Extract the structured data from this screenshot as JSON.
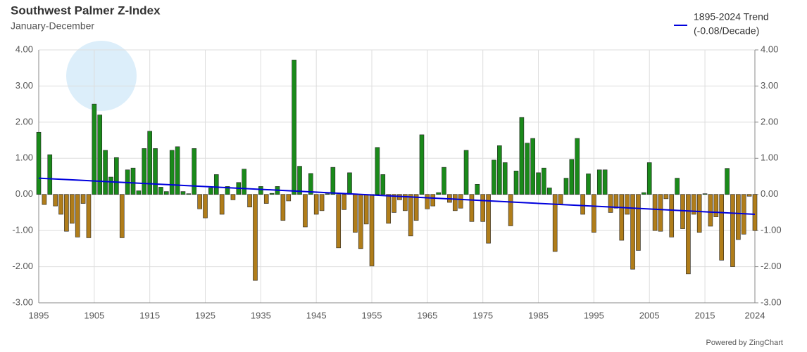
{
  "chart_data": {
    "type": "bar",
    "title": "Southwest Palmer Z-Index",
    "subtitle": "January-December",
    "footer": "Powered by ZingChart",
    "x": [
      1895,
      1896,
      1897,
      1898,
      1899,
      1900,
      1901,
      1902,
      1903,
      1904,
      1905,
      1906,
      1907,
      1908,
      1909,
      1910,
      1911,
      1912,
      1913,
      1914,
      1915,
      1916,
      1917,
      1918,
      1919,
      1920,
      1921,
      1922,
      1923,
      1924,
      1925,
      1926,
      1927,
      1928,
      1929,
      1930,
      1931,
      1932,
      1933,
      1934,
      1935,
      1936,
      1937,
      1938,
      1939,
      1940,
      1941,
      1942,
      1943,
      1944,
      1945,
      1946,
      1947,
      1948,
      1949,
      1950,
      1951,
      1952,
      1953,
      1954,
      1955,
      1956,
      1957,
      1958,
      1959,
      1960,
      1961,
      1962,
      1963,
      1964,
      1965,
      1966,
      1967,
      1968,
      1969,
      1970,
      1971,
      1972,
      1973,
      1974,
      1975,
      1976,
      1977,
      1978,
      1979,
      1980,
      1981,
      1982,
      1983,
      1984,
      1985,
      1986,
      1987,
      1988,
      1989,
      1990,
      1991,
      1992,
      1993,
      1994,
      1995,
      1996,
      1997,
      1998,
      1999,
      2000,
      2001,
      2002,
      2003,
      2004,
      2005,
      2006,
      2007,
      2008,
      2009,
      2010,
      2011,
      2012,
      2013,
      2014,
      2015,
      2016,
      2017,
      2018,
      2019,
      2020,
      2021,
      2022,
      2023,
      2024
    ],
    "values": [
      1.72,
      -0.28,
      1.1,
      -0.32,
      -0.55,
      -1.02,
      -0.8,
      -1.18,
      -0.25,
      -1.2,
      2.5,
      2.2,
      1.22,
      0.48,
      1.02,
      -1.2,
      0.68,
      0.73,
      0.1,
      1.27,
      1.75,
      1.27,
      0.2,
      0.08,
      1.22,
      1.32,
      0.08,
      0.02,
      1.27,
      -0.4,
      -0.65,
      0.18,
      0.55,
      -0.55,
      0.22,
      -0.15,
      0.33,
      0.7,
      -0.35,
      -2.38,
      0.22,
      -0.25,
      0.03,
      0.22,
      -0.72,
      -0.18,
      3.72,
      0.78,
      -0.9,
      0.58,
      -0.55,
      -0.45,
      0.02,
      0.75,
      -1.48,
      -0.42,
      0.6,
      -1.05,
      -1.5,
      -0.82,
      -1.98,
      1.3,
      0.55,
      -0.8,
      -0.5,
      -0.15,
      -0.45,
      -1.15,
      -0.72,
      1.65,
      -0.4,
      -0.32,
      0.05,
      0.75,
      -0.22,
      -0.45,
      -0.38,
      1.22,
      -0.75,
      0.28,
      -0.75,
      -1.35,
      0.95,
      1.35,
      0.88,
      -0.87,
      0.65,
      2.13,
      1.42,
      1.55,
      0.6,
      0.73,
      0.18,
      -1.58,
      -0.28,
      0.45,
      0.97,
      1.55,
      -0.55,
      0.57,
      -1.05,
      0.68,
      0.68,
      -0.5,
      -0.38,
      -1.27,
      -0.55,
      -2.07,
      -1.55,
      0.05,
      0.88,
      -1.0,
      -1.02,
      -0.12,
      -1.18,
      0.45,
      -0.95,
      -2.2,
      -0.55,
      -1.05,
      0.02,
      -0.88,
      -0.62,
      -1.82,
      0.72,
      -2.0,
      -1.25,
      -1.1,
      -0.05,
      -1.0
    ],
    "positive_color": "#1a8a1a",
    "negative_color": "#b07d1a",
    "trend": {
      "name": "1895-2024 Trend",
      "label": "(-0.08/Decade)",
      "color": "#0000dd",
      "x": [
        1895,
        2024
      ],
      "values": [
        0.45,
        -0.55
      ]
    },
    "xlim": [
      1895,
      2024
    ],
    "xticks": [
      1895,
      1905,
      1915,
      1925,
      1935,
      1945,
      1955,
      1965,
      1975,
      1985,
      1995,
      2005,
      2015,
      2024
    ],
    "ylim": [
      -3,
      4
    ],
    "yticks": [
      {
        "value": 4,
        "label": "4.00"
      },
      {
        "value": 3,
        "label": "3.00"
      },
      {
        "value": 2,
        "label": "2.00"
      },
      {
        "value": 1,
        "label": "1.00"
      },
      {
        "value": 0,
        "label": "0.00"
      },
      {
        "value": -1,
        "label": "-1.00"
      },
      {
        "value": -2,
        "label": "-2.00"
      },
      {
        "value": -3,
        "label": "-3.00"
      }
    ],
    "y2lim": [
      -3,
      4
    ],
    "y2ticks": [
      {
        "value": 4,
        "label": "4.00"
      },
      {
        "value": 3,
        "label": "3.00"
      },
      {
        "value": 2,
        "label": "2.00"
      },
      {
        "value": 1,
        "label": "1.00"
      },
      {
        "value": 0,
        "label": "0.00"
      },
      {
        "value": -1,
        "label": "-1.00"
      },
      {
        "value": -2,
        "label": "-2.00"
      },
      {
        "value": -3,
        "label": "-3.00"
      }
    ],
    "grid": true
  }
}
